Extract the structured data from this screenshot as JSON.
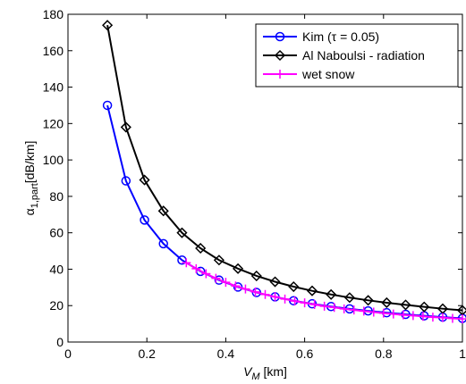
{
  "chart_data": {
    "type": "line",
    "title": "",
    "xlabel": {
      "main": "V",
      "sub": "M",
      "unit": " [km]"
    },
    "ylabel": {
      "main": "α",
      "sub": "1,part",
      "unit": "[dB/km]"
    },
    "xlim": [
      0,
      1
    ],
    "ylim": [
      0,
      180
    ],
    "xticks": [
      0,
      0.2,
      0.4,
      0.6,
      0.8,
      1
    ],
    "xtick_labels": [
      "0",
      "0.2",
      "0.4",
      "0.6",
      "0.8",
      "1"
    ],
    "yticks": [
      0,
      20,
      40,
      60,
      80,
      100,
      120,
      140,
      160,
      180
    ],
    "ytick_labels": [
      "0",
      "20",
      "40",
      "60",
      "80",
      "100",
      "120",
      "140",
      "160",
      "180"
    ],
    "grid": false,
    "legend_position": "top-right",
    "series": [
      {
        "name": "Kim (τ = 0.05)",
        "color": "#0000ff",
        "marker": "circle",
        "x": [
          0.1,
          0.147,
          0.194,
          0.242,
          0.289,
          0.336,
          0.383,
          0.431,
          0.478,
          0.525,
          0.572,
          0.619,
          0.667,
          0.714,
          0.761,
          0.808,
          0.856,
          0.903,
          0.95,
          1.0
        ],
        "y": [
          130,
          88.5,
          67,
          54,
          45,
          38.8,
          34,
          30.2,
          27.2,
          24.8,
          22.7,
          21,
          19.5,
          18.2,
          17.1,
          16.1,
          15.2,
          14.4,
          13.7,
          13
        ]
      },
      {
        "name": "Al Naboulsi - radiation",
        "color": "#000000",
        "marker": "diamond",
        "x": [
          0.1,
          0.147,
          0.194,
          0.242,
          0.289,
          0.336,
          0.383,
          0.431,
          0.478,
          0.525,
          0.572,
          0.619,
          0.667,
          0.714,
          0.761,
          0.808,
          0.856,
          0.903,
          0.95,
          1.0
        ],
        "y": [
          174,
          118,
          89,
          72,
          60,
          51.5,
          45,
          40.3,
          36.3,
          33.1,
          30.4,
          28.1,
          26.1,
          24.4,
          22.9,
          21.6,
          20.4,
          19.3,
          18.3,
          17.4
        ]
      },
      {
        "name": "wet snow",
        "color": "#ff00ff",
        "marker": "plus",
        "x": [
          0.3,
          0.325,
          0.35,
          0.375,
          0.4,
          0.425,
          0.45,
          0.475,
          0.5,
          0.525,
          0.55,
          0.575,
          0.6,
          0.625,
          0.65,
          0.675,
          0.7,
          0.725,
          0.75,
          0.775,
          0.8,
          0.825,
          0.85,
          0.875,
          0.9,
          0.925,
          0.95,
          0.975,
          1.0
        ],
        "y": [
          43.5,
          40.3,
          37.5,
          35,
          32.8,
          30.8,
          29.1,
          27.5,
          26.1,
          24.8,
          23.6,
          22.5,
          21.5,
          20.6,
          19.7,
          19,
          18.2,
          17.6,
          17,
          16.4,
          15.9,
          15.4,
          14.9,
          14.5,
          14.1,
          13.7,
          13.4,
          13,
          12.7
        ]
      }
    ]
  }
}
